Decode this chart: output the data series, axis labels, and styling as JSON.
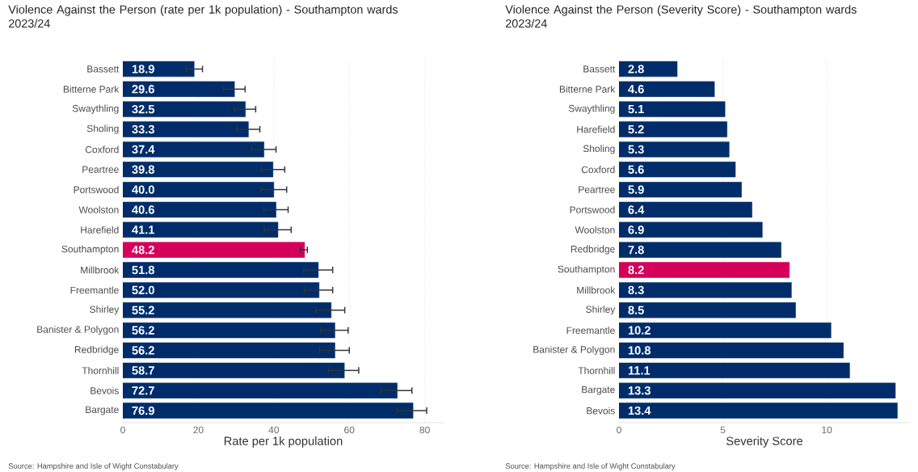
{
  "chart_data": [
    {
      "type": "bar",
      "orientation": "horizontal",
      "title": "Violence Against the Person (rate per 1k population) - Southampton wards 2023/24",
      "xlabel": "Rate per 1k population",
      "categories": [
        "Bassett",
        "Bitterne Park",
        "Swaythling",
        "Sholing",
        "Coxford",
        "Peartree",
        "Portswood",
        "Woolston",
        "Harefield",
        "Southampton",
        "Millbrook",
        "Freemantle",
        "Shirley",
        "Banister & Polygon",
        "Redbridge",
        "Thornhill",
        "Bevois",
        "Bargate"
      ],
      "values": [
        18.9,
        29.6,
        32.5,
        33.3,
        37.4,
        39.8,
        40.0,
        40.6,
        41.1,
        48.2,
        51.8,
        52.0,
        55.2,
        56.2,
        56.2,
        58.7,
        72.7,
        76.9
      ],
      "value_labels": [
        "18.9",
        "29.6",
        "32.5",
        "33.3",
        "37.4",
        "39.8",
        "40.0",
        "40.6",
        "41.1",
        "48.2",
        "51.8",
        "52.0",
        "55.2",
        "56.2",
        "56.2",
        "58.7",
        "72.7",
        "76.9"
      ],
      "errors": [
        [
          16.8,
          21.1
        ],
        [
          26.6,
          32.4
        ],
        [
          29.6,
          35.2
        ],
        [
          30.2,
          36.3
        ],
        [
          34.1,
          40.6
        ],
        [
          36.6,
          42.9
        ],
        [
          36.6,
          43.4
        ],
        [
          37.3,
          43.8
        ],
        [
          37.5,
          44.6
        ],
        [
          47.1,
          48.9
        ],
        [
          47.9,
          55.6
        ],
        [
          48.1,
          55.6
        ],
        [
          51.1,
          58.8
        ],
        [
          52.4,
          59.7
        ],
        [
          52.1,
          60.0
        ],
        [
          54.5,
          62.5
        ],
        [
          68.3,
          76.6
        ],
        [
          72.6,
          80.5
        ]
      ],
      "colors": [
        "#002d6a",
        "#002d6a",
        "#002d6a",
        "#002d6a",
        "#002d6a",
        "#002d6a",
        "#002d6a",
        "#002d6a",
        "#002d6a",
        "#d4005a",
        "#002d6a",
        "#002d6a",
        "#002d6a",
        "#002d6a",
        "#002d6a",
        "#002d6a",
        "#002d6a",
        "#002d6a"
      ],
      "xlim": [
        0,
        85
      ],
      "xticks": [
        0,
        20,
        40,
        60,
        80
      ],
      "grid": "x",
      "annotations": [
        "Source: Hampshire and Isle of Wight Constabulary"
      ]
    },
    {
      "type": "bar",
      "orientation": "horizontal",
      "title": "Violence Against the Person (Severity Score) - Southampton wards 2023/24",
      "xlabel": "Severity Score",
      "categories": [
        "Bassett",
        "Bitterne Park",
        "Swaythling",
        "Harefield",
        "Sholing",
        "Coxford",
        "Peartree",
        "Portswood",
        "Woolston",
        "Redbridge",
        "Southampton",
        "Millbrook",
        "Shirley",
        "Freemantle",
        "Banister & Polygon",
        "Thornhill",
        "Bargate",
        "Bevois"
      ],
      "values": [
        2.8,
        4.6,
        5.1,
        5.2,
        5.3,
        5.6,
        5.9,
        6.4,
        6.9,
        7.8,
        8.2,
        8.3,
        8.5,
        10.2,
        10.8,
        11.1,
        13.3,
        13.4
      ],
      "value_labels": [
        "2.8",
        "4.6",
        "5.1",
        "5.2",
        "5.3",
        "5.6",
        "5.9",
        "6.4",
        "6.9",
        "7.8",
        "8.2",
        "8.3",
        "8.5",
        "10.2",
        "10.8",
        "11.1",
        "13.3",
        "13.4"
      ],
      "colors": [
        "#002d6a",
        "#002d6a",
        "#002d6a",
        "#002d6a",
        "#002d6a",
        "#002d6a",
        "#002d6a",
        "#002d6a",
        "#002d6a",
        "#002d6a",
        "#d4005a",
        "#002d6a",
        "#002d6a",
        "#002d6a",
        "#002d6a",
        "#002d6a",
        "#002d6a",
        "#002d6a"
      ],
      "xlim": [
        0,
        14
      ],
      "xticks": [
        0,
        5,
        10
      ],
      "grid": "x",
      "annotations": [
        "Source: Hampshire and Isle of Wight Constabulary"
      ]
    }
  ]
}
